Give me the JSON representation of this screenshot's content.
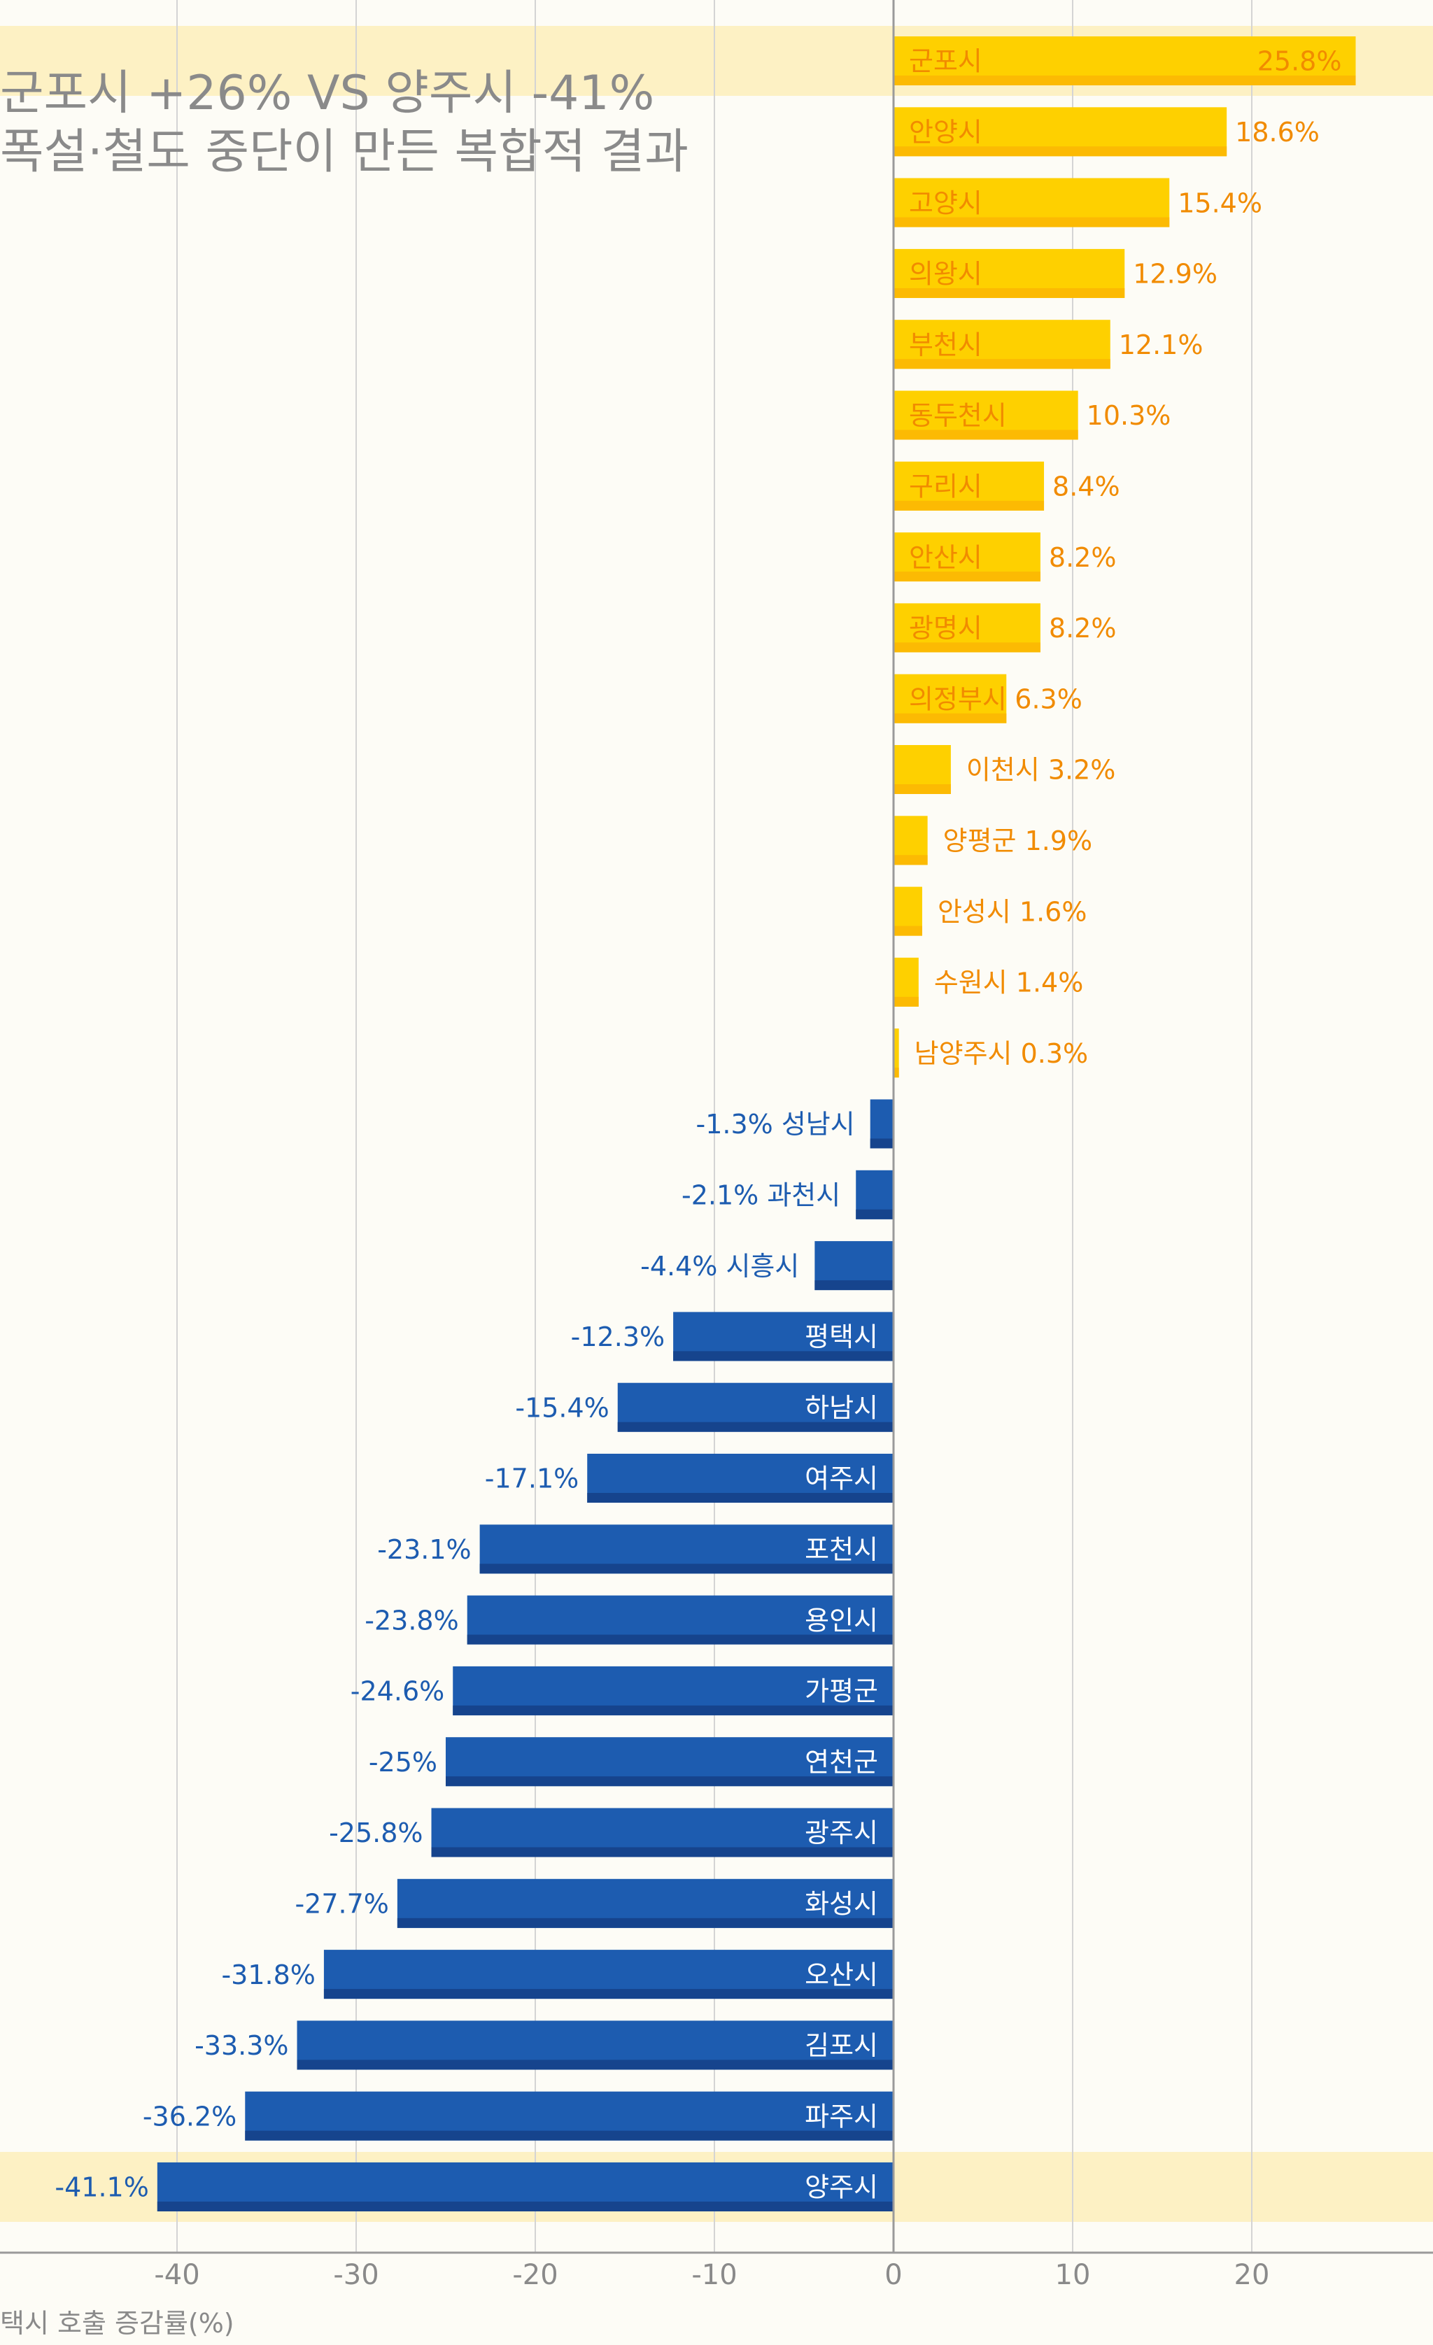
{
  "headline": {
    "line1": "군포시 +26% VS 양주시 -41%",
    "line2": "폭설·철도 중단이 만든 복합적 결과"
  },
  "chart_data": {
    "type": "bar",
    "orientation": "horizontal",
    "categories": [
      "군포시",
      "안양시",
      "고양시",
      "의왕시",
      "부천시",
      "동두천시",
      "구리시",
      "안산시",
      "광명시",
      "의정부시",
      "이천시",
      "양평군",
      "안성시",
      "수원시",
      "남양주시",
      "성남시",
      "과천시",
      "시흥시",
      "평택시",
      "하남시",
      "여주시",
      "포천시",
      "용인시",
      "가평군",
      "연천군",
      "광주시",
      "화성시",
      "오산시",
      "김포시",
      "파주시",
      "양주시"
    ],
    "values": [
      25.8,
      18.6,
      15.4,
      12.9,
      12.1,
      10.3,
      8.4,
      8.2,
      8.2,
      6.3,
      3.2,
      1.9,
      1.6,
      1.4,
      0.3,
      -1.3,
      -2.1,
      -4.4,
      -12.3,
      -15.4,
      -17.1,
      -23.1,
      -23.8,
      -24.6,
      -25,
      -25.8,
      -27.7,
      -31.8,
      -33.3,
      -36.2,
      -41.1
    ],
    "value_labels": [
      "25.8%",
      "18.6%",
      "15.4%",
      "12.9%",
      "12.1%",
      "10.3%",
      "8.4%",
      "8.2%",
      "8.2%",
      "6.3%",
      "3.2%",
      "1.9%",
      "1.6%",
      "1.4%",
      "0.3%",
      "-1.3%",
      "-2.1%",
      "-4.4%",
      "-12.3%",
      "-15.4%",
      "-17.1%",
      "-23.1%",
      "-23.8%",
      "-24.6%",
      "-25%",
      "-25.8%",
      "-27.7%",
      "-31.8%",
      "-33.3%",
      "-36.2%",
      "-41.1%"
    ],
    "highlighted": [
      "군포시",
      "양주시"
    ],
    "xlabel": "택시 호출 증감률(%)",
    "ylabel": "",
    "xlim": [
      -50,
      30
    ],
    "xticks": [
      -40,
      -30,
      -20,
      -10,
      0,
      10,
      20
    ],
    "grid": true,
    "colors": {
      "positive": "#fed000",
      "positive_shade": "#fcba03",
      "positive_text": "#f18b00",
      "negative": "#1d5cb0",
      "negative_shade": "#16448d",
      "negative_text": "#1d5cb0",
      "inside_label_negative": "#ffffff",
      "highlight_band": "#fdf1c4",
      "grid": "#d4d4d4",
      "axis_text": "#8a8a8a",
      "background": "#fdfcf6"
    }
  }
}
